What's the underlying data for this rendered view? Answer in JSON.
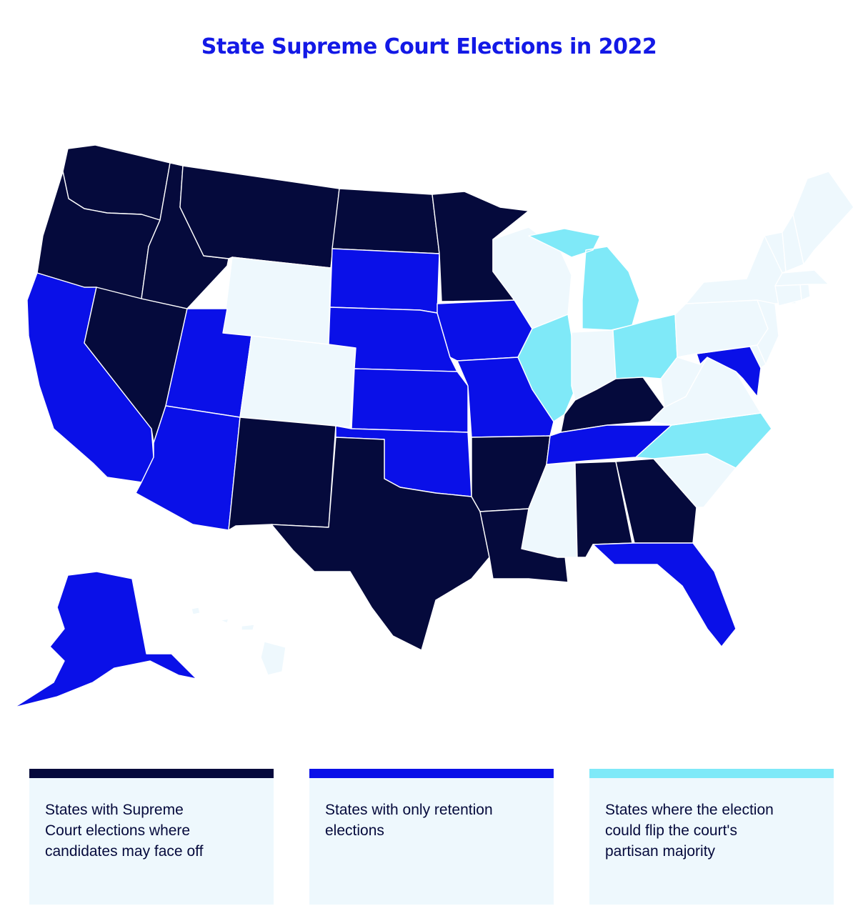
{
  "title": "State Supreme Court Elections  in 2022",
  "colors": {
    "title": "#1319e6",
    "contested": "#050a3c",
    "retention": "#0a10e8",
    "flip": "#7fe9f8",
    "none": "#eef8fd"
  },
  "legend": [
    {
      "category": "contested",
      "label": "States with Supreme\nCourt elections where\ncandidates may face off"
    },
    {
      "category": "retention",
      "label": "States with only retention\nelections"
    },
    {
      "category": "flip",
      "label": "States where the election\ncould flip the court's\npartisan majority"
    }
  ],
  "states": [
    {
      "name": "Washington",
      "category": "contested"
    },
    {
      "name": "Oregon",
      "category": "contested"
    },
    {
      "name": "California",
      "category": "retention"
    },
    {
      "name": "Nevada",
      "category": "contested"
    },
    {
      "name": "Idaho",
      "category": "contested"
    },
    {
      "name": "Montana",
      "category": "contested"
    },
    {
      "name": "Wyoming",
      "category": "none"
    },
    {
      "name": "Utah",
      "category": "retention"
    },
    {
      "name": "Arizona",
      "category": "retention"
    },
    {
      "name": "Colorado",
      "category": "none"
    },
    {
      "name": "New Mexico",
      "category": "contested"
    },
    {
      "name": "North Dakota",
      "category": "contested"
    },
    {
      "name": "South Dakota",
      "category": "retention"
    },
    {
      "name": "Nebraska",
      "category": "retention"
    },
    {
      "name": "Kansas",
      "category": "retention"
    },
    {
      "name": "Oklahoma",
      "category": "retention"
    },
    {
      "name": "Texas",
      "category": "contested"
    },
    {
      "name": "Minnesota",
      "category": "contested"
    },
    {
      "name": "Iowa",
      "category": "retention"
    },
    {
      "name": "Missouri",
      "category": "retention"
    },
    {
      "name": "Arkansas",
      "category": "contested"
    },
    {
      "name": "Louisiana",
      "category": "contested"
    },
    {
      "name": "Wisconsin",
      "category": "none"
    },
    {
      "name": "Illinois",
      "category": "flip"
    },
    {
      "name": "Michigan",
      "category": "flip"
    },
    {
      "name": "Indiana",
      "category": "none"
    },
    {
      "name": "Ohio",
      "category": "flip"
    },
    {
      "name": "Kentucky",
      "category": "contested"
    },
    {
      "name": "Tennessee",
      "category": "retention"
    },
    {
      "name": "Mississippi",
      "category": "none"
    },
    {
      "name": "Alabama",
      "category": "contested"
    },
    {
      "name": "Georgia",
      "category": "contested"
    },
    {
      "name": "Florida",
      "category": "retention"
    },
    {
      "name": "South Carolina",
      "category": "none"
    },
    {
      "name": "North Carolina",
      "category": "flip"
    },
    {
      "name": "Virginia",
      "category": "none"
    },
    {
      "name": "West Virginia",
      "category": "none"
    },
    {
      "name": "Maryland",
      "category": "retention"
    },
    {
      "name": "Delaware",
      "category": "none"
    },
    {
      "name": "Pennsylvania",
      "category": "none"
    },
    {
      "name": "New Jersey",
      "category": "none"
    },
    {
      "name": "New York",
      "category": "none"
    },
    {
      "name": "Connecticut",
      "category": "none"
    },
    {
      "name": "Rhode Island",
      "category": "none"
    },
    {
      "name": "Massachusetts",
      "category": "none"
    },
    {
      "name": "Vermont",
      "category": "none"
    },
    {
      "name": "New Hampshire",
      "category": "none"
    },
    {
      "name": "Maine",
      "category": "none"
    },
    {
      "name": "Alaska",
      "category": "retention"
    },
    {
      "name": "Hawaii",
      "category": "none"
    }
  ]
}
